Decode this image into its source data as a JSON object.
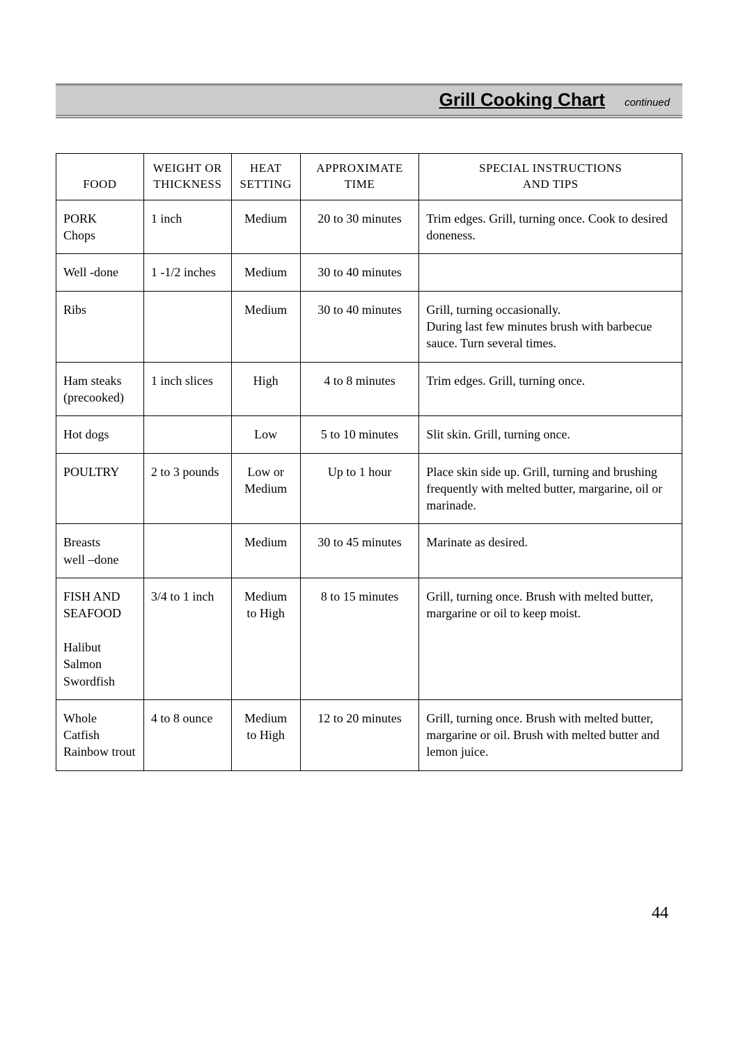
{
  "header": {
    "title": "Grill Cooking Chart",
    "subtitle": "continued"
  },
  "table": {
    "columns": [
      {
        "line1": "",
        "line2": "FOOD"
      },
      {
        "line1": "WEIGHT OR",
        "line2": "THICKNESS"
      },
      {
        "line1": "HEAT",
        "line2": "SETTING"
      },
      {
        "line1": "APPROXIMATE",
        "line2": "TIME"
      },
      {
        "line1": "SPECIAL INSTRUCTIONS",
        "line2": "AND TIPS"
      }
    ],
    "rows": [
      {
        "food_heading": "PORK",
        "food_sub": "Chops",
        "weight": "1 inch",
        "heat": "Medium",
        "time": "20 to 30 minutes",
        "tips": "Trim edges. Grill, turning once. Cook to desired\ndoneness."
      },
      {
        "food_heading": "",
        "food_sub": "Well -done",
        "weight": "1 -1/2 inches",
        "heat": "Medium",
        "time": "30 to 40 minutes",
        "tips": ""
      },
      {
        "food_heading": "",
        "food_sub": "Ribs",
        "weight": "",
        "heat": "Medium",
        "time": "30 to 40 minutes",
        "tips": "Grill, turning occasionally.\nDuring last few minutes brush with barbecue sauce. Turn several times."
      },
      {
        "food_heading": "",
        "food_sub": "Ham steaks (precooked)",
        "weight": "1 inch slices",
        "heat": "High",
        "time": "4 to 8 minutes",
        "tips": "Trim edges. Grill, turning once."
      },
      {
        "food_heading": "",
        "food_sub": "Hot dogs",
        "weight": "",
        "heat": "Low",
        "time": "5 to 10 minutes",
        "tips": "Slit skin. Grill, turning once."
      },
      {
        "food_heading": "POULTRY",
        "food_sub": "",
        "weight": "2 to 3 pounds",
        "heat": "Low or Medium",
        "time": "Up to 1 hour",
        "tips": "Place skin side up. Grill, turning and brushing frequently with melted butter, margarine, oil or marinade."
      },
      {
        "food_heading": "",
        "food_sub": "Breasts\nwell –done",
        "weight": "",
        "heat": "Medium",
        "time": "30 to 45 minutes",
        "tips": "Marinate as desired."
      },
      {
        "food_heading": "FISH AND SEAFOOD",
        "food_sub": "\nHalibut\nSalmon\nSwordfish",
        "weight": "3/4 to 1 inch",
        "heat": "Medium to High",
        "time": "8 to 15 minutes",
        "tips": "Grill, turning once. Brush with melted butter, margarine or oil to keep moist."
      },
      {
        "food_heading": "",
        "food_sub": "Whole\nCatfish\nRainbow trout",
        "weight": "4 to 8 ounce",
        "heat": "Medium to High",
        "time": "12 to 20 minutes",
        "tips": "Grill, turning once. Brush with melted butter, margarine or oil. Brush with melted butter and lemon juice."
      }
    ],
    "column_widths_pct": [
      14,
      14,
      11,
      19,
      42
    ],
    "border_color": "#000000",
    "font_size_pt": 18
  },
  "page_number": "44",
  "style": {
    "background_color": "#ffffff",
    "title_bar_bg": "#cccccc",
    "title_font_family": "Arial",
    "title_font_size_pt": 26,
    "body_font_family": "Georgia",
    "body_font_size_pt": 18
  }
}
